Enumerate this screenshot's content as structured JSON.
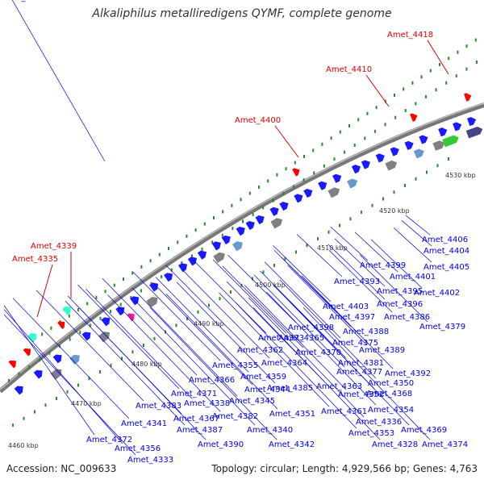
{
  "title": "Alkaliphilus metalliredigens QYMF, complete genome",
  "footer": {
    "accession": "Accession: NC_009633",
    "topology": "Topology: circular; Length: 4,929,566 bp; Genes: 4,763"
  },
  "scale_labels": [
    "4460 kbp",
    "4470 kbp",
    "4480 kbp",
    "4490 kbp",
    "4500 kbp",
    "4510 kbp",
    "4520 kbp",
    "4530 kbp"
  ],
  "red_labels": [
    "Amet_4418",
    "Amet_4410",
    "Amet_4400",
    "Amet_4339",
    "Amet_4335"
  ],
  "blue_labels": [
    "Amet_4406",
    "Amet_4404",
    "Amet_4405",
    "Amet_4399",
    "Amet_4401",
    "Amet_4393",
    "Amet_4395",
    "Amet_4402",
    "Amet_4396",
    "Amet_4403",
    "Amet_4386",
    "Amet_4397",
    "Amet_4379",
    "Amet_4388",
    "Amet_4398",
    "Amet_4373",
    "Amet_4365",
    "Amet_4375",
    "Amet_4362",
    "Amet_4370",
    "Amet_4389",
    "Amet_4364",
    "Amet_4381",
    "Amet_4355",
    "Amet_4377",
    "Amet_4392",
    "Amet_4359",
    "Amet_4366",
    "Amet_4350",
    "Amet_4385",
    "Amet_4363",
    "Amet_4371",
    "Amet_4344",
    "Amet_4352",
    "Amet_4368",
    "Amet_4383",
    "Amet_4338",
    "Amet_4345",
    "Amet_4354",
    "Amet_4382",
    "Amet_4351",
    "Amet_4361",
    "Amet_4367",
    "Amet_4341",
    "Amet_4336",
    "Amet_4369",
    "Amet_4387",
    "Amet_4340",
    "Amet_4353",
    "Amet_4372",
    "Amet_4328",
    "Amet_4374",
    "Amet_4390",
    "Amet_4342",
    "Amet_4356",
    "Amet_4333",
    "Amet_4334"
  ],
  "colors": {
    "backbone": "#888888",
    "forward_gene": "#1a1aff",
    "highlight_gene": "#ff0000",
    "tick": "#2a8a2a",
    "label_blue": "#0000dd",
    "label_red": "#dd0000"
  }
}
